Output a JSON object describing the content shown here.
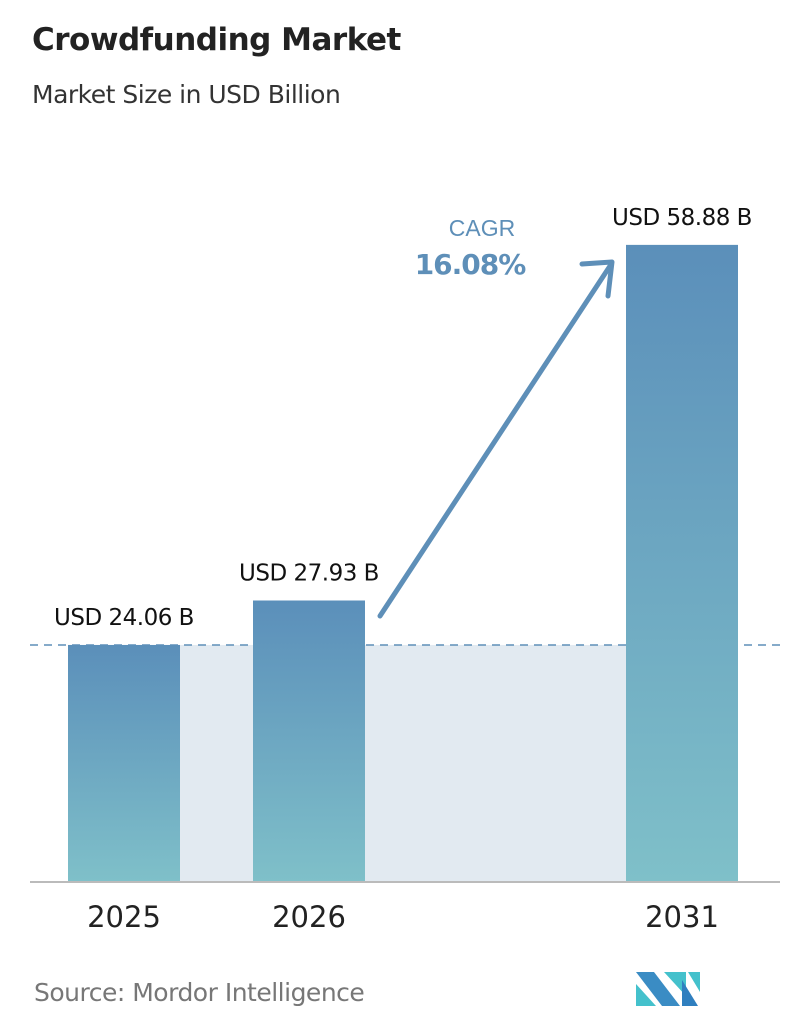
{
  "title": "Crowdfunding Market",
  "subtitle": "Market Size in USD Billion",
  "source": "Source:  Mordor Intelligence",
  "logo_text": "MI",
  "colors": {
    "bar_top": "#5b8fba",
    "bar_bottom": "#7fc0c9",
    "accent": "#5e8fb8",
    "band": "#e2eaf1"
  },
  "chart_data": {
    "type": "bar",
    "categories": [
      "2025",
      "2026",
      "2031"
    ],
    "values": [
      24.06,
      27.93,
      58.88
    ],
    "labels": [
      "USD 24.06 B",
      "USD 27.93 B",
      "USD 58.88 B"
    ],
    "unit": "USD Billion",
    "annotation": {
      "label": "CAGR",
      "value": "16.08%"
    },
    "reference_line": 24.06,
    "grid": false
  }
}
